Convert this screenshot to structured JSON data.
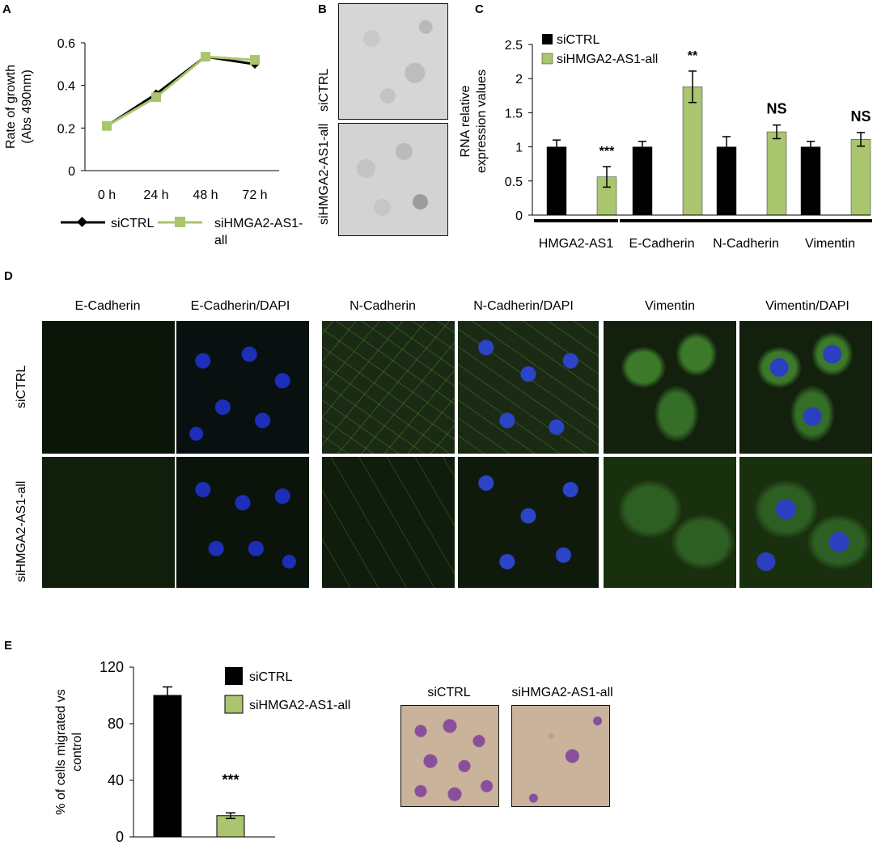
{
  "panels": {
    "a": {
      "letter": "A"
    },
    "b": {
      "letter": "B",
      "row_labels": [
        "siCTRL",
        "siHMGA2-AS1-all"
      ]
    },
    "c": {
      "letter": "C"
    },
    "d": {
      "letter": "D",
      "col_headers": [
        "E-Cadherin",
        "E-Cadherin/DAPI",
        "N-Cadherin",
        "N-Cadherin/DAPI",
        "Vimentin",
        "Vimentin/DAPI"
      ],
      "row_labels": [
        "siCTRL",
        "siHMGA2-AS1-all"
      ]
    },
    "e": {
      "letter": "E",
      "image_labels": [
        "siCTRL",
        "siHMGA2-AS1-all"
      ]
    }
  },
  "colors": {
    "ctrl": "#000000",
    "si": "#a9c56d",
    "si_dark": "#7e9a3c",
    "dapi": "#1d2fb8",
    "green_stain": "#3f8e2c",
    "stain_bg": "#c9b39a",
    "stain_cells": "#8a4f9a"
  },
  "chart_data": [
    {
      "type": "line",
      "x": [
        "0 h",
        "24 h",
        "48 h",
        "72 h"
      ],
      "series": [
        {
          "name": "siCTRL",
          "values": [
            0.21,
            0.36,
            0.535,
            0.5
          ]
        },
        {
          "name": "siHMGA2-AS1-all",
          "values": [
            0.21,
            0.345,
            0.535,
            0.52
          ]
        }
      ],
      "legend_lines": {
        "siCTRL": [
          "siCTRL"
        ],
        "siHMGA2-AS1-all": [
          "siHMGA2-AS1-",
          "all"
        ]
      },
      "ylabel": [
        "Rate of growth",
        "(Abs 490nm)"
      ],
      "ylim": [
        0,
        0.6
      ],
      "yticks": [
        "0",
        "0.2",
        "0.4",
        "0.6"
      ],
      "grid": false,
      "legend": "bottom"
    },
    {
      "type": "bar",
      "categories": [
        "HMGA2-AS1",
        "E-Cadherin",
        "N-Cadherin",
        "Vimentin"
      ],
      "series": [
        {
          "name": "siCTRL",
          "values": [
            1.0,
            1.0,
            1.0,
            1.0
          ],
          "errors": [
            0.1,
            0.08,
            0.15,
            0.08
          ]
        },
        {
          "name": "siHMGA2-AS1-all",
          "values": [
            0.56,
            1.88,
            1.22,
            1.11
          ],
          "errors": [
            0.15,
            0.23,
            0.1,
            0.1
          ]
        }
      ],
      "annotations": [
        "***",
        "**",
        "NS",
        "NS"
      ],
      "ylabel": [
        "RNA  relative",
        "expression values"
      ],
      "ylim": [
        0,
        2.5
      ],
      "yticks": [
        "0",
        "0.5",
        "1",
        "1.5",
        "2",
        "2.5"
      ],
      "grid": false,
      "legend": "top-left"
    },
    {
      "type": "bar",
      "categories": [
        "siCTRL",
        "siHMGA2-AS1-all"
      ],
      "values": [
        100,
        15
      ],
      "errors": [
        6,
        2
      ],
      "annotations": [
        "",
        "***"
      ],
      "ylabel": [
        "% of cells migrated vs",
        "control"
      ],
      "ylim": [
        0,
        120
      ],
      "yticks": [
        "0",
        "40",
        "80",
        "120"
      ],
      "grid": false,
      "legend": "top-right"
    }
  ]
}
